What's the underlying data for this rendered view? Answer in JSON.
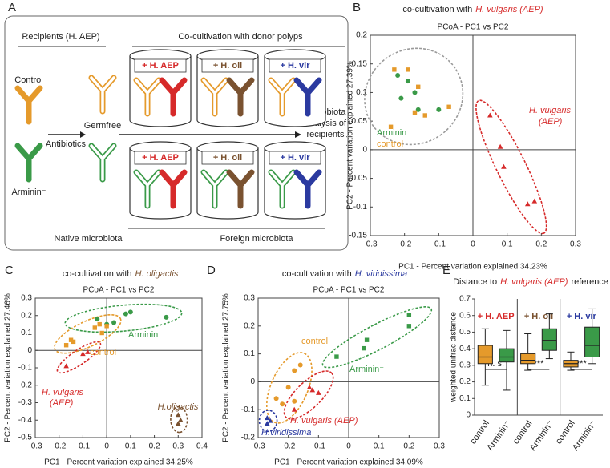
{
  "diagram": {
    "panel_label": "A",
    "recipients_heading": "Recipients (H. AEP)",
    "cocultivation_heading": "Co-cultivation with donor polyps",
    "control_label": "Control",
    "arminin_label": "Arminin⁻",
    "antibiotics_label": "Antibiotics",
    "germfree_label": "Germfree",
    "analysis_label": [
      "Microbiota",
      "analysis of",
      "recipients"
    ],
    "cylinders": [
      {
        "label": "+ H. AEP",
        "color": "#d62a2a"
      },
      {
        "label": "+ H. oli",
        "color": "#7a5230"
      },
      {
        "label": "+ H. vir",
        "color": "#2b3aa0"
      }
    ],
    "native_label": "Native microbiota",
    "foreign_label": "Foreign microbiota"
  },
  "chart_data": [
    {
      "type": "scatter",
      "panel_label": "B",
      "title": "co-cultivation with",
      "title_species": "H. vulgaris (AEP)",
      "title_color": "#d62a2a",
      "subtitle": "PCoA - PC1 vs PC2",
      "xlabel": "PC1 - Percent variation explained 34.23%",
      "ylabel": "PC2 - Percent variation explained 27.39%",
      "xlim": [
        -0.3,
        0.3
      ],
      "xticks": [
        -0.3,
        -0.2,
        -0.1,
        0,
        0.1,
        0.2,
        0.3
      ],
      "ylim": [
        -0.15,
        0.2
      ],
      "yticks": [
        -0.15,
        -0.1,
        -0.05,
        0,
        0.05,
        0.1,
        0.15,
        0.2
      ],
      "series": [
        {
          "color": "#3a9a48",
          "marker": "circle",
          "x": [
            -0.22,
            -0.19,
            -0.17,
            -0.16,
            -0.1,
            -0.21
          ],
          "values": [
            0.13,
            0.12,
            0.1,
            0.07,
            0.07,
            0.09
          ]
        },
        {
          "color": "#e59a2b",
          "marker": "square",
          "x": [
            -0.23,
            -0.19,
            -0.16,
            -0.14,
            -0.07,
            -0.24,
            -0.17
          ],
          "values": [
            0.14,
            0.14,
            0.11,
            0.06,
            0.075,
            0.04,
            0.065
          ]
        },
        {
          "color": "#d62a2a",
          "marker": "triangle",
          "x": [
            0.05,
            0.08,
            0.09,
            0.16,
            0.18
          ],
          "values": [
            0.06,
            0.005,
            -0.03,
            -0.095,
            -0.09
          ]
        }
      ],
      "annotations": [
        {
          "text": "H. vulgaris",
          "color": "#d62a2a"
        },
        {
          "text": "(AEP)",
          "color": "#d62a2a"
        },
        {
          "text": "Arminin⁻",
          "color": "#3a9a48"
        },
        {
          "text": "control",
          "color": "#e59a2b"
        }
      ]
    },
    {
      "type": "scatter",
      "panel_label": "C",
      "title": "co-cultivation with",
      "title_species": "H. oligactis",
      "title_color": "#7a5230",
      "subtitle": "PCoA - PC1 vs PC2",
      "xlabel": "PC1 - Percent variation explained 34.25%",
      "ylabel": "PC2 - Percent variation explained 27.46%",
      "xlim": [
        -0.3,
        0.4
      ],
      "xticks": [
        -0.3,
        -0.2,
        -0.1,
        0,
        0.1,
        0.2,
        0.3,
        0.4
      ],
      "ylim": [
        -0.5,
        0.3
      ],
      "yticks": [
        -0.5,
        -0.4,
        -0.3,
        -0.2,
        -0.1,
        0,
        0.1,
        0.2,
        0.3
      ],
      "series": [
        {
          "color": "#3a9a48",
          "marker": "circle",
          "x": [
            -0.04,
            0.03,
            0.08,
            0.1,
            0.25,
            0.0
          ],
          "values": [
            0.18,
            0.16,
            0.21,
            0.22,
            0.19,
            0.15
          ]
        },
        {
          "color": "#e59a2b",
          "marker": "square",
          "x": [
            -0.15,
            -0.14,
            -0.17,
            -0.05,
            -0.03,
            -0.02,
            0.0
          ],
          "values": [
            0.06,
            0.05,
            0.03,
            0.13,
            0.15,
            0.1,
            0.14
          ]
        },
        {
          "color": "#d62a2a",
          "marker": "triangle",
          "x": [
            -0.17,
            -0.1,
            -0.08
          ],
          "values": [
            -0.09,
            -0.02,
            -0.01
          ]
        },
        {
          "color": "#7a5230",
          "marker": "triangle",
          "x": [
            0.3,
            0.31,
            0.3
          ],
          "values": [
            -0.37,
            -0.4,
            -0.42
          ]
        }
      ],
      "annotations": [
        {
          "text": "Arminin⁻",
          "color": "#3a9a48"
        },
        {
          "text": "control",
          "color": "#e59a2b"
        },
        {
          "text": "H. vulgaris",
          "color": "#d62a2a"
        },
        {
          "text": "(AEP)",
          "color": "#d62a2a"
        },
        {
          "text": "H.oligactis",
          "color": "#7a5230"
        }
      ]
    },
    {
      "type": "scatter",
      "panel_label": "D",
      "title": "co-cultivation with",
      "title_species": "H. viridissima",
      "title_color": "#2b3aa0",
      "subtitle": "PCoA - PC1 vs PC2",
      "xlabel": "PC1 - Percent variation explained 34.09%",
      "ylabel": "PC2 - Percent variation explained 27.75%",
      "xlim": [
        -0.3,
        0.3
      ],
      "xticks": [
        -0.3,
        -0.2,
        -0.1,
        0,
        0.1,
        0.2,
        0.3
      ],
      "ylim": [
        -0.2,
        0.3
      ],
      "yticks": [
        -0.2,
        -0.1,
        0,
        0.1,
        0.2,
        0.3
      ],
      "series": [
        {
          "color": "#3a9a48",
          "marker": "square",
          "x": [
            0.2,
            0.2,
            0.06,
            0.05,
            -0.04
          ],
          "values": [
            0.24,
            0.2,
            0.15,
            0.12,
            0.09
          ]
        },
        {
          "color": "#e59a2b",
          "marker": "circle",
          "x": [
            -0.16,
            -0.18,
            -0.2,
            -0.22,
            -0.24,
            -0.18
          ],
          "values": [
            0.06,
            0.04,
            -0.02,
            -0.08,
            -0.06,
            -0.07
          ]
        },
        {
          "color": "#d62a2a",
          "marker": "triangle",
          "x": [
            -0.13,
            -0.1,
            -0.12,
            -0.18
          ],
          "values": [
            -0.02,
            -0.04,
            -0.03,
            -0.1
          ]
        },
        {
          "color": "#2b3aa0",
          "marker": "triangle",
          "x": [
            -0.26,
            -0.27,
            -0.27
          ],
          "values": [
            -0.14,
            -0.13,
            -0.15
          ]
        }
      ],
      "annotations": [
        {
          "text": "control",
          "color": "#e59a2b"
        },
        {
          "text": "Arminin⁻",
          "color": "#3a9a48"
        },
        {
          "text": "H. vulgaris (AEP)",
          "color": "#d62a2a"
        },
        {
          "text": "H.viridissima",
          "color": "#2b3aa0"
        }
      ]
    },
    {
      "type": "box",
      "panel_label": "E",
      "title": "Distance to",
      "title_species": "H. vulgaris (AEP)",
      "title_end": "reference",
      "title_color": "#d62a2a",
      "ylabel": "weighted unifrac distance",
      "ylim": [
        0,
        0.7
      ],
      "yticks": [
        0,
        0.1,
        0.2,
        0.3,
        0.4,
        0.5,
        0.6,
        0.7
      ],
      "groups": [
        {
          "name": "+ H. AEP",
          "color": "#d62a2a",
          "annotation": "n. s.",
          "boxes": [
            {
              "label": "control",
              "color": "#e59a2b",
              "min": 0.18,
              "q1": 0.31,
              "median": 0.35,
              "q3": 0.42,
              "max": 0.52
            },
            {
              "label": "Arminin⁻",
              "color": "#3a9a48",
              "min": 0.15,
              "q1": 0.32,
              "median": 0.35,
              "q3": 0.4,
              "max": 0.51
            }
          ]
        },
        {
          "name": "+ H. oli",
          "color": "#7a5230",
          "annotation": "***",
          "boxes": [
            {
              "label": "control",
              "color": "#e59a2b",
              "min": 0.27,
              "q1": 0.31,
              "median": 0.33,
              "q3": 0.37,
              "max": 0.49
            },
            {
              "label": "Arminin⁻",
              "color": "#3a9a48",
              "min": 0.34,
              "q1": 0.39,
              "median": 0.45,
              "q3": 0.52,
              "max": 0.61
            }
          ]
        },
        {
          "name": "+ H. vir",
          "color": "#2b3aa0",
          "annotation": "***",
          "boxes": [
            {
              "label": "control",
              "color": "#e59a2b",
              "min": 0.27,
              "q1": 0.29,
              "median": 0.31,
              "q3": 0.33,
              "max": 0.38
            },
            {
              "label": "Arminin⁻",
              "color": "#3a9a48",
              "min": 0.31,
              "q1": 0.35,
              "median": 0.42,
              "q3": 0.53,
              "max": 0.64
            }
          ]
        }
      ]
    }
  ]
}
